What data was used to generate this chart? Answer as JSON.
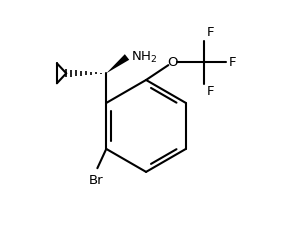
{
  "bg_color": "#ffffff",
  "line_color": "#000000",
  "lw": 1.5,
  "fig_width": 3.04,
  "fig_height": 2.4,
  "dpi": 100,
  "xlim": [
    0,
    10
  ],
  "ylim": [
    0,
    8
  ]
}
